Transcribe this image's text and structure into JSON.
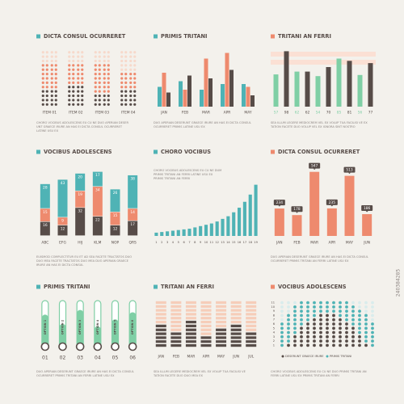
{
  "stock_id": "240384285",
  "chart_data": [
    {
      "type": "dotcol",
      "title": "DICTA CONSUL OCURRERET",
      "accent": "#4fb3b5",
      "categories": [
        "ITEM 01",
        "ITEM 02",
        "ITEM 03",
        "ITEM 04"
      ],
      "series": [
        {
          "color": "#574c48",
          "values": [
            4,
            5,
            3,
            4
          ]
        },
        {
          "color": "#ee8a6e",
          "values": [
            6,
            5,
            7,
            4
          ]
        }
      ],
      "empty_color": "#f7d9cb",
      "ylim": [
        0,
        13
      ],
      "caption": [
        "CHORO VOCIBUS ADOLESCENS EU CU NE DUO APERIAN DESER",
        "UNT GRAECE IRURE AN HAS EI DICTA CONSUL OCURRERET",
        "LATINE USU EX"
      ]
    },
    {
      "type": "grouped",
      "title": "PRIMIS TRITANI",
      "accent": "#4fb3b5",
      "categories": [
        "JAN",
        "FEB",
        "MAR",
        "APR",
        "MAY"
      ],
      "series": [
        {
          "color": "#4fb3b5",
          "values": [
            35,
            45,
            30,
            40,
            40
          ]
        },
        {
          "color": "#ee8a6e",
          "values": [
            60,
            30,
            85,
            95,
            35
          ]
        },
        {
          "color": "#574c48",
          "values": [
            25,
            55,
            50,
            65,
            20
          ]
        }
      ],
      "ylim": [
        0,
        100
      ],
      "caption": [
        "DUO APERIAN DESERUNT GRAECE IRURE AN HAS EI DICTA CONSUL",
        "OCURRERET PRIMIS LATINE USU EX"
      ]
    },
    {
      "type": "barlabels",
      "title": "TRITANI AN FERRI",
      "accent": "#ee8a6e",
      "values": [
        57,
        98,
        62,
        62,
        54,
        70,
        85,
        81,
        56,
        77
      ],
      "colors": [
        "#7fcfa5",
        "#574c48",
        "#7fcfa5",
        "#574c48",
        "#7fcfa5",
        "#574c48",
        "#7fcfa5",
        "#574c48",
        "#7fcfa5",
        "#574c48"
      ],
      "band_color": "#fbe0d4",
      "ylim": [
        0,
        100
      ],
      "caption": [
        "SEA ILLUM LEGERE MEDIOCREM VEL EX VOLUP TUA FACILISI VE EX",
        "TATION FACETE DUO VOLUP VEL EX IGNORA SINT NOSTRO"
      ]
    },
    {
      "type": "stacked",
      "title": "VOCIBUS ADOLESCENS",
      "accent": "#4fb3b5",
      "categories": [
        "ABC",
        "EFG",
        "HIJ",
        "KLM",
        "NOP",
        "QRS"
      ],
      "series": [
        {
          "color": "#574c48",
          "values": [
            16,
            12,
            32,
            22,
            12,
            17
          ]
        },
        {
          "color": "#ee8a6e",
          "values": [
            15,
            9,
            19,
            34,
            15,
            14
          ]
        },
        {
          "color": "#4fb3b5",
          "values": [
            28,
            43,
            20,
            17,
            26,
            38
          ]
        }
      ],
      "ylim": [
        0,
        80
      ],
      "caption": [
        "EUISMOD COMPLECTITUR EU ET AD SEA FACETE TRACTATOS DUO",
        "DUO MEA FACETE TRACTATOS DUO MEA DUO APERIAN GRAECE",
        "IRURE AN HAS EI DICTA CONSUL"
      ]
    },
    {
      "type": "growth",
      "title": "CHORO VOCIBUS",
      "accent": "#4fb3b5",
      "categories": [
        "1",
        "2",
        "3",
        "4",
        "5",
        "6",
        "7",
        "8",
        "9",
        "10",
        "11",
        "12",
        "13",
        "14",
        "15",
        "16",
        "17",
        "18",
        "19"
      ],
      "values": [
        5,
        6,
        7,
        8,
        9,
        10,
        11,
        13,
        15,
        17,
        19,
        22,
        26,
        30,
        36,
        43,
        52,
        63,
        78
      ],
      "color": "#4fb3b5",
      "ylim": [
        0,
        80
      ],
      "caption": [
        "CHORO VOCIBUS ADOLESCENS EU CU NE DUM",
        "PRIMIS TRITANI AN FERRI LATINE USU EX",
        "PRIMIS TRITANI AN FERRI"
      ]
    },
    {
      "type": "callout",
      "title": "DICTA CONSUL OCURRERET",
      "accent": "#ee8a6e",
      "categories": [
        "JAN",
        "FEB",
        "MAR",
        "APR",
        "MAY",
        "JUN"
      ],
      "values": [
        234,
        178,
        547,
        235,
        513,
        186
      ],
      "color": "#ee8a6e",
      "label_color": "#574c48",
      "ylim": [
        0,
        600
      ],
      "caption": [
        "DUO APERIAN DESERUNT GRAECE IRURE AN HAS EI DICTA CONSUL",
        "OCURRERET PRIMIS TRITANI AN FERRI LATINE USU EX"
      ]
    },
    {
      "type": "thermo",
      "title": "PRIMIS TRITANI",
      "accent": "#4fb3b5",
      "categories": [
        "01",
        "02",
        "03",
        "04",
        "05",
        "06"
      ],
      "labels": [
        "OPTION 1",
        "OPTION 2",
        "OPTION 3",
        "OPTION 4",
        "OPTION 5",
        "OPTION 6"
      ],
      "values": [
        70,
        50,
        80,
        45,
        60,
        75
      ],
      "color": "#7fcfa5",
      "bulb_color": "#574c48",
      "ylim": [
        0,
        100
      ],
      "caption": [
        "DUO APERIAN DESERUNT GRAECE IRURE AN HAS EI DICTA CONSUL",
        "OCURRERET PRIMIS TRITANI AN FERRI LATINE USU EX"
      ]
    },
    {
      "type": "stripes",
      "title": "TRITANI AN FERRI",
      "accent": "#4fb3b5",
      "categories": [
        "JAN",
        "FEB",
        "MAR",
        "APR",
        "MAY",
        "JUN",
        "JUL"
      ],
      "values": [
        6,
        4,
        7,
        3,
        5,
        6,
        4
      ],
      "color": "#574c48",
      "empty_color": "#f6cdb9",
      "ylim": [
        0,
        12
      ],
      "caption": [
        "SEA ILLUM LEGERE MEDIOCREM VEL EX VOLUP TUA FACILISI VE",
        "TATION FACETE DUO DUO MEA EX"
      ]
    },
    {
      "type": "dotgrid",
      "title": "VOCIBUS ADOLESCENS",
      "accent": "#ee8a6e",
      "series": [
        {
          "name": "DESERUNT GRAECE IRURE",
          "color": "#574c48",
          "values": [
            0,
            1,
            3,
            5,
            6,
            7,
            8,
            8,
            8,
            7,
            6,
            5,
            3,
            1,
            0
          ]
        },
        {
          "name": "PRIMIS TRITANI",
          "color": "#4fb3b5",
          "values": [
            6,
            8,
            10,
            11,
            11,
            11,
            11,
            11,
            11,
            11,
            11,
            10,
            9,
            8,
            6
          ]
        }
      ],
      "empty_color": "#d9ecec",
      "ylim": [
        0,
        11
      ],
      "yticks": [
        1,
        2,
        3,
        4,
        5,
        6,
        7,
        8,
        9,
        10,
        11
      ],
      "caption": [
        "CHORO VOCIBUS ADOLESCENS EU CU NE DUO PRIMIS TRITANI AN",
        "FERRI LATINE USU EX PRIMIS TRITANI AN FERRI"
      ]
    }
  ]
}
